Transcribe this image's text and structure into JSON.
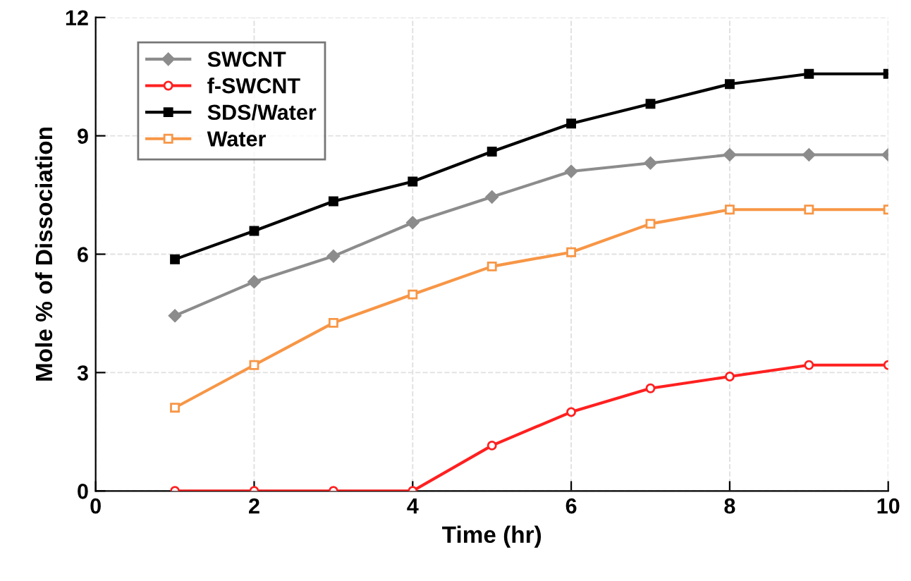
{
  "chart_data": {
    "type": "line",
    "xlabel": "Time (hr)",
    "ylabel": "Mole % of Dissociation",
    "x": [
      1,
      2,
      3,
      4,
      5,
      6,
      7,
      8,
      9,
      10
    ],
    "series": [
      {
        "name": "SWCNT",
        "color": "#8c8c8c",
        "marker": "diamond",
        "values": [
          4.44,
          5.3,
          5.95,
          6.8,
          7.45,
          8.1,
          8.31,
          8.52,
          8.52,
          8.52
        ]
      },
      {
        "name": "f-SWCNT",
        "color": "#ff2020",
        "marker": "circle",
        "values": [
          0,
          0,
          0,
          0,
          1.15,
          2.0,
          2.6,
          2.9,
          3.19,
          3.19
        ]
      },
      {
        "name": "SDS/Water",
        "color": "#000000",
        "marker": "square",
        "values": [
          5.87,
          6.59,
          7.34,
          7.84,
          8.6,
          9.31,
          9.81,
          10.31,
          10.57,
          10.57
        ]
      },
      {
        "name": "Water",
        "color": "#f79646",
        "marker": "square",
        "values": [
          2.11,
          3.19,
          4.26,
          4.98,
          5.69,
          6.05,
          6.77,
          7.13,
          7.13,
          7.13
        ]
      }
    ],
    "xlim": [
      0,
      10
    ],
    "ylim": [
      0,
      12
    ],
    "xticks": [
      0,
      2,
      4,
      6,
      8,
      10
    ],
    "yticks": [
      0,
      3,
      6,
      9,
      12
    ],
    "grid": true,
    "legend": "top left",
    "line_style": "solid"
  }
}
